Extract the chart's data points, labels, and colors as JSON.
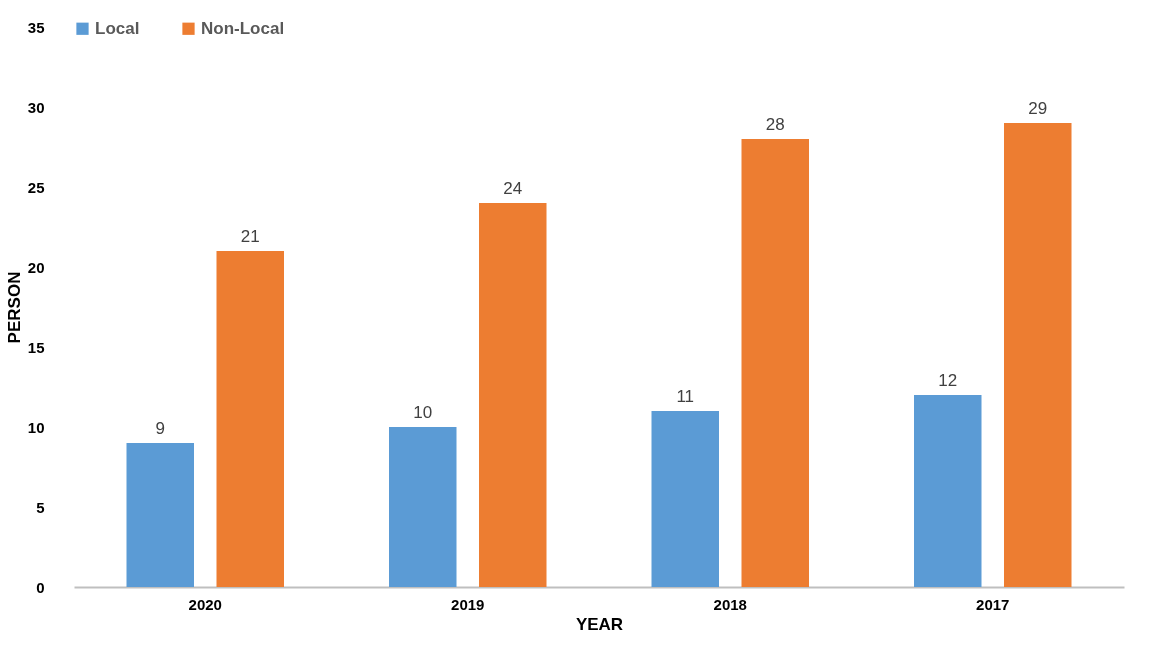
{
  "chart_data": {
    "type": "bar",
    "xlabel": "YEAR",
    "ylabel": "PERSON",
    "categories": [
      "2020",
      "2019",
      "2018",
      "2017"
    ],
    "series": [
      {
        "name": "Local",
        "color": "#5b9bd5",
        "values": [
          9,
          10,
          11,
          12
        ]
      },
      {
        "name": "Non-Local",
        "color": "#ed7d31",
        "values": [
          21,
          24,
          28,
          29
        ]
      }
    ],
    "ylim": [
      0,
      35
    ],
    "yticks": [
      0,
      5,
      10,
      15,
      20,
      25,
      30,
      35
    ],
    "grid": false,
    "legend": "top",
    "data_labels": true
  }
}
